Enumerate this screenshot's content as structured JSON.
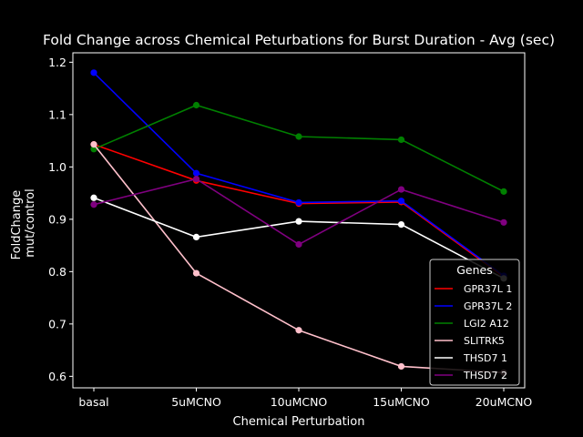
{
  "chart_data": {
    "type": "line",
    "title": "Fold Change across Chemical Peturbations for Burst Duration - Avg (sec)",
    "xlabel": "Chemical Perturbation",
    "ylabel": [
      "FoldChange",
      "mut/control"
    ],
    "categories": [
      "basal",
      "5uMCNO",
      "10uMCNO",
      "15uMCNO",
      "20uMCNO"
    ],
    "ylim": [
      0.578,
      1.218
    ],
    "yticks": [
      "0.6",
      "0.7",
      "0.8",
      "0.9",
      "1.0",
      "1.1",
      "1.2"
    ],
    "grid": false,
    "legend": {
      "title": "Genes",
      "placement": "lower-right"
    },
    "series": [
      {
        "name": "GPR37L 1",
        "color": "#ff0000",
        "values": [
          1.043,
          0.974,
          0.93,
          0.933,
          0.79
        ]
      },
      {
        "name": "GPR37L 2",
        "color": "#0000ff",
        "values": [
          1.18,
          0.988,
          0.932,
          0.935,
          0.792
        ]
      },
      {
        "name": "LGI2 A12",
        "color": "#008000",
        "values": [
          1.034,
          1.118,
          1.058,
          1.052,
          0.953
        ]
      },
      {
        "name": "SLITRK5",
        "color": "#ffc0cb",
        "values": [
          1.043,
          0.797,
          0.688,
          0.619,
          0.607
        ]
      },
      {
        "name": "THSD7 1",
        "color": "#ffffff",
        "values": [
          0.941,
          0.866,
          0.896,
          0.89,
          0.787
        ]
      },
      {
        "name": "THSD7 2",
        "color": "#800080",
        "values": [
          0.928,
          0.977,
          0.852,
          0.957,
          0.894
        ]
      }
    ]
  }
}
